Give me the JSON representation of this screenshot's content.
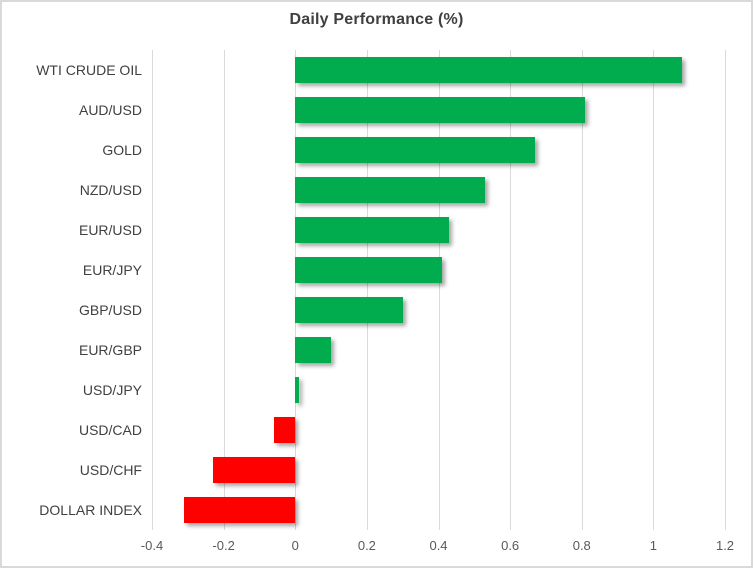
{
  "chart_data": {
    "type": "bar",
    "orientation": "horizontal",
    "title": "Daily Performance (%)",
    "categories": [
      "WTI CRUDE OIL",
      "AUD/USD",
      "GOLD",
      "NZD/USD",
      "EUR/USD",
      "EUR/JPY",
      "GBP/USD",
      "EUR/GBP",
      "USD/JPY",
      "USD/CAD",
      "USD/CHF",
      "DOLLAR INDEX"
    ],
    "values": [
      1.08,
      0.81,
      0.67,
      0.53,
      0.43,
      0.41,
      0.3,
      0.1,
      0.01,
      -0.06,
      -0.23,
      -0.31
    ],
    "xlim": [
      -0.4,
      1.2
    ],
    "x_ticks": [
      -0.4,
      -0.2,
      0,
      0.2,
      0.4,
      0.6,
      0.8,
      1,
      1.2
    ],
    "x_tick_labels": [
      "-0.4",
      "-0.2",
      "0",
      "0.2",
      "0.4",
      "0.6",
      "0.8",
      "1",
      "1.2"
    ],
    "xlabel": "",
    "ylabel": "",
    "grid": "vertical-only",
    "legend": "none",
    "positive_color": "#00AC4E",
    "negative_color": "#FF0000",
    "gridline_color": "#D9D9D9",
    "title_color": "#404040",
    "label_color": "#404040",
    "tick_label_color": "#595959"
  }
}
